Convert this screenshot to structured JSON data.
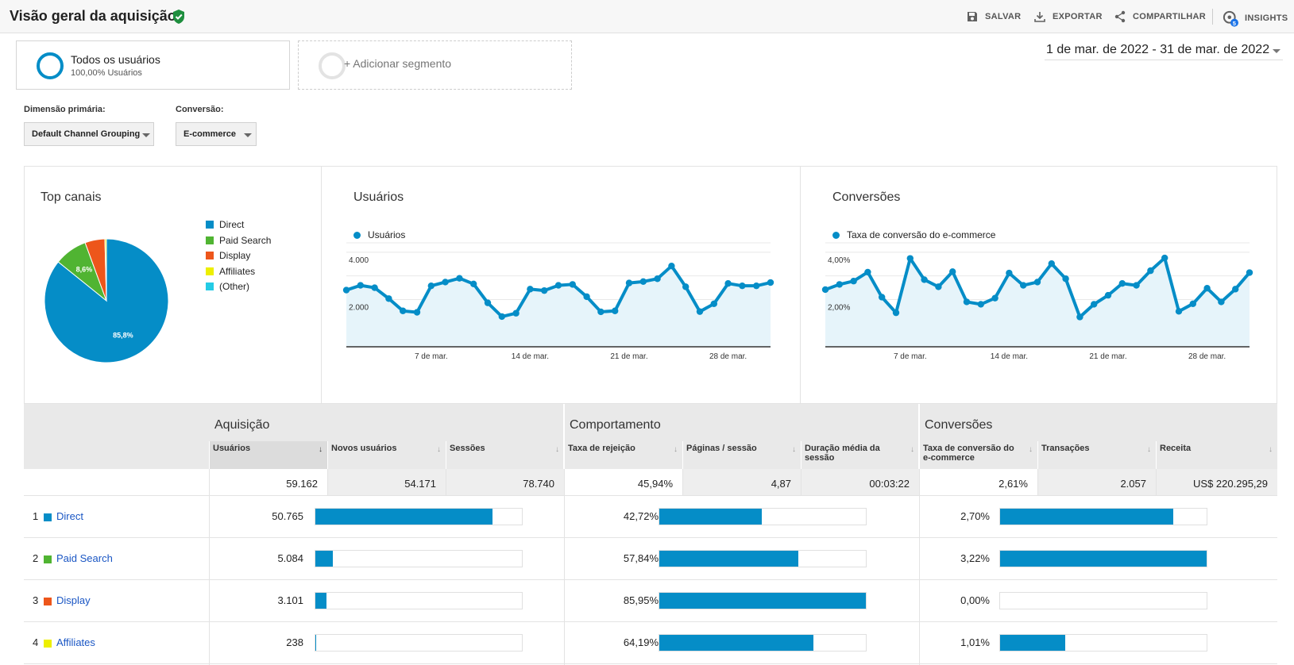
{
  "header": {
    "title": "Visão geral da aquisição",
    "actions": {
      "save": "SALVAR",
      "export": "EXPORTAR",
      "share": "COMPARTILHAR",
      "insights": "INSIGHTS"
    },
    "insights_badge": "5"
  },
  "segments": {
    "active": {
      "title": "Todos os usuários",
      "subtitle": "100,00% Usuários"
    },
    "add": "+ Adicionar segmento"
  },
  "date_range": "1 de mar. de 2022 - 31 de mar. de 2022",
  "controls": {
    "primary_dimension_label": "Dimensão primária:",
    "primary_dimension_value": "Default Channel Grouping",
    "conversion_label": "Conversão:",
    "conversion_value": "E-commerce"
  },
  "panels": {
    "top_channels_title": "Top canais",
    "users_title": "Usuários",
    "conversions_title": "Conversões"
  },
  "chart_data": [
    {
      "type": "pie",
      "title": "Top canais",
      "categories": [
        "Direct",
        "Paid Search",
        "Display",
        "Affiliates",
        "(Other)"
      ],
      "values": [
        85.8,
        8.6,
        5.2,
        0.4,
        0.0
      ],
      "slice_labels": [
        "85,8%",
        "8,6%",
        "",
        "",
        ""
      ],
      "colors": [
        "#058dc7",
        "#50b432",
        "#ed561b",
        "#edef00",
        "#24cbe5"
      ],
      "legend": "right"
    },
    {
      "type": "area",
      "series": [
        {
          "name": "Usuários",
          "color": "#058dc7"
        }
      ],
      "x": [
        "1 de mar.",
        "2 de mar.",
        "3 de mar.",
        "4 de mar.",
        "5 de mar.",
        "6 de mar.",
        "7 de mar.",
        "8 de mar.",
        "9 de mar.",
        "10 de mar.",
        "11 de mar.",
        "12 de mar.",
        "13 de mar.",
        "14 de mar.",
        "15 de mar.",
        "16 de mar.",
        "17 de mar.",
        "18 de mar.",
        "19 de mar.",
        "20 de mar.",
        "21 de mar.",
        "22 de mar.",
        "23 de mar.",
        "24 de mar.",
        "25 de mar.",
        "26 de mar.",
        "27 de mar.",
        "28 de mar.",
        "29 de mar.",
        "30 de mar.",
        "31 de mar."
      ],
      "values": [
        2400,
        2600,
        2500,
        2040,
        1520,
        1460,
        2580,
        2740,
        2900,
        2660,
        1860,
        1280,
        1420,
        2440,
        2380,
        2600,
        2640,
        2120,
        1480,
        1520,
        2700,
        2760,
        2880,
        3420,
        2540,
        1490,
        1820,
        2680,
        2580,
        2580,
        2720
      ],
      "x_ticks": [
        "7 de mar.",
        "14 de mar.",
        "21 de mar.",
        "28 de mar."
      ],
      "y_ticks": [
        "2.000",
        "4.000"
      ],
      "ylim": [
        0,
        4400
      ],
      "grid": true
    },
    {
      "type": "area",
      "series": [
        {
          "name": "Taxa de conversão do e-commerce",
          "color": "#058dc7"
        }
      ],
      "x": [
        "1 de mar.",
        "2 de mar.",
        "3 de mar.",
        "4 de mar.",
        "5 de mar.",
        "6 de mar.",
        "7 de mar.",
        "8 de mar.",
        "9 de mar.",
        "10 de mar.",
        "11 de mar.",
        "12 de mar.",
        "13 de mar.",
        "14 de mar.",
        "15 de mar.",
        "16 de mar.",
        "17 de mar.",
        "18 de mar.",
        "19 de mar.",
        "20 de mar.",
        "21 de mar.",
        "22 de mar.",
        "23 de mar.",
        "24 de mar.",
        "25 de mar.",
        "26 de mar.",
        "27 de mar.",
        "28 de mar.",
        "29 de mar.",
        "30 de mar.",
        "31 de mar."
      ],
      "values": [
        2.42,
        2.64,
        2.78,
        3.16,
        2.1,
        1.44,
        3.74,
        2.84,
        2.54,
        3.18,
        1.9,
        1.8,
        2.06,
        3.12,
        2.6,
        2.74,
        3.52,
        2.88,
        1.26,
        1.8,
        2.18,
        2.68,
        2.6,
        3.22,
        3.76,
        1.5,
        1.82,
        2.48,
        1.9,
        2.44,
        3.14
      ],
      "x_ticks": [
        "7 de mar.",
        "14 de mar.",
        "21 de mar.",
        "28 de mar."
      ],
      "y_ticks": [
        "2,00%",
        "4,00%"
      ],
      "ylim": [
        0,
        4.4
      ],
      "grid": true
    }
  ],
  "table": {
    "groups": {
      "acquisition": "Aquisição",
      "behavior": "Comportamento",
      "conversions": "Conversões"
    },
    "columns": [
      "Usuários",
      "Novos usuários",
      "Sessões",
      "Taxa de rejeição",
      "Páginas / sessão",
      "Duração média da sessão",
      "Taxa de conversão do e-commerce",
      "Transações",
      "Receita"
    ],
    "totals": [
      "59.162",
      "54.171",
      "78.740",
      "45,94%",
      "4,87",
      "00:03:22",
      "2,61%",
      "2.057",
      "US$ 220.295,29"
    ],
    "rows": [
      {
        "num": "1",
        "name": "Direct",
        "color": "#058dc7",
        "users": "50.765",
        "users_fraction": 0.858,
        "bounce": "42,72%",
        "bounce_fraction": 0.497,
        "conv": "2,70%",
        "conv_fraction": 0.839
      },
      {
        "num": "2",
        "name": "Paid Search",
        "color": "#50b432",
        "users": "5.084",
        "users_fraction": 0.086,
        "bounce": "57,84%",
        "bounce_fraction": 0.673,
        "conv": "3,22%",
        "conv_fraction": 1.0
      },
      {
        "num": "3",
        "name": "Display",
        "color": "#ed561b",
        "users": "3.101",
        "users_fraction": 0.052,
        "bounce": "85,95%",
        "bounce_fraction": 1.0,
        "conv": "0,00%",
        "conv_fraction": 0.0
      },
      {
        "num": "4",
        "name": "Affiliates",
        "color": "#edef00",
        "users": "238",
        "users_fraction": 0.004,
        "bounce": "64,19%",
        "bounce_fraction": 0.747,
        "conv": "1,01%",
        "conv_fraction": 0.314
      }
    ]
  }
}
